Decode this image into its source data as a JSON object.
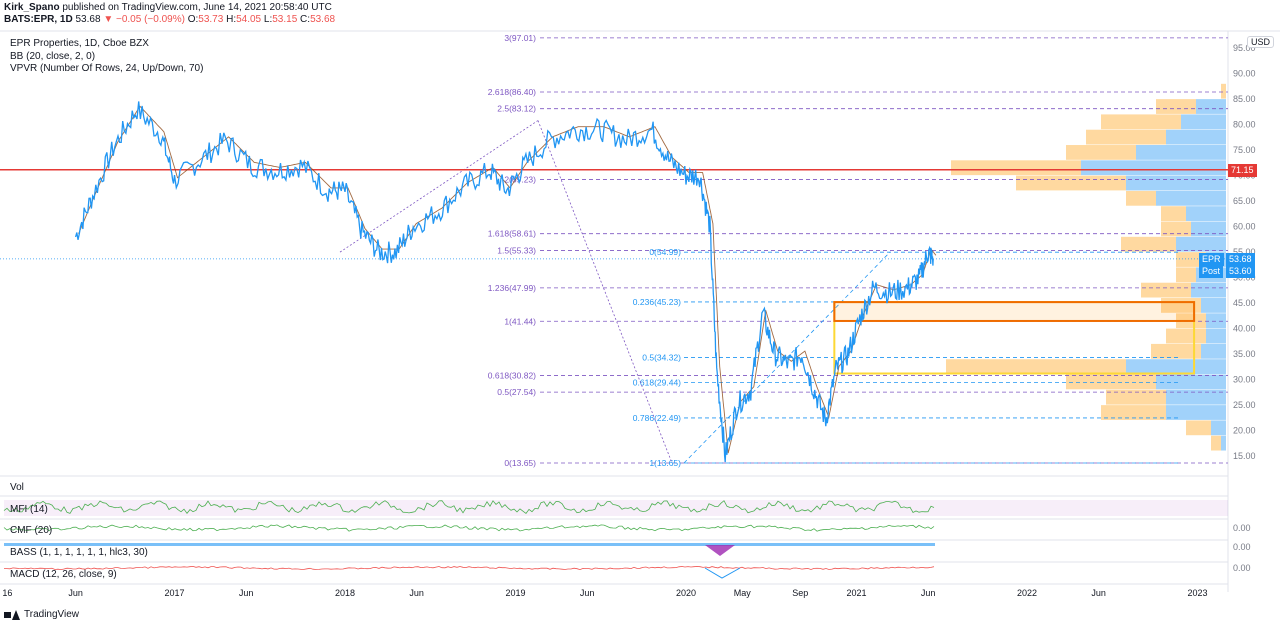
{
  "header": {
    "author": "Kirk_Spano",
    "published": "published on TradingView.com, June 14, 2021 20:58:40 UTC",
    "symbol_line": "BATS:EPR, 1D",
    "last": "53.68",
    "change": "−0.05 (−0.09%)",
    "O": "53.73",
    "H": "54.05",
    "L": "53.15",
    "C": "53.68"
  },
  "legends": {
    "title": "EPR Properties, 1D, Cboe BZX",
    "bb": "BB (20, close, 2, 0)",
    "vpvr": "VPVR (Number Of Rows, 24, Up/Down, 70)",
    "vol": "Vol",
    "mfi": "MFI (14)",
    "cmf": "CMF (20)",
    "bass": "BASS (1, 1, 1, 1, 1, 1, hlc3, 30)",
    "macd": "MACD (12, 26, close, 9)"
  },
  "footer": {
    "brand": "TradingView"
  },
  "price_axis": {
    "unit": "USD",
    "ticks": [
      "95.00",
      "90.00",
      "85.00",
      "80.00",
      "75.00",
      "70.00",
      "65.00",
      "60.00",
      "55.00",
      "50.00",
      "45.00",
      "40.00",
      "35.00",
      "30.00",
      "25.00",
      "20.00",
      "15.00"
    ],
    "pane_ticks": {
      "cmf": "0.00",
      "bass": "0.00",
      "macd": "0.00"
    }
  },
  "time_axis": [
    "16",
    "Jun",
    "2017",
    "Jun",
    "2018",
    "Jun",
    "2019",
    "Jun",
    "2020",
    "May",
    "Sep",
    "2021",
    "Jun",
    "2022",
    "Jun",
    "2023"
  ],
  "tags": {
    "resistance": "71.15",
    "symbol": "EPR",
    "symbol_price": "53.68",
    "post": "Post",
    "post_price": "53.60"
  },
  "colors": {
    "price": "#2196f3",
    "ma": "#8b4513",
    "resistance": "#e53935",
    "fib_ext": "#7e57c2",
    "fib_ret": "#2196f3",
    "box_orange": "#ef6c00",
    "box_yellow": "#fdd835",
    "vp_up": "#90caf9",
    "vp_down": "#ffcc80"
  },
  "chart_data": {
    "type": "line",
    "title": "EPR Properties, 1D, Cboe BZX",
    "ylim": [
      12,
      97
    ],
    "resistance_level": 71.15,
    "fib_extension": [
      {
        "label": "3(97.01)",
        "value": 97.01
      },
      {
        "label": "2.618(86.40)",
        "value": 86.4
      },
      {
        "label": "2.5(83.12)",
        "value": 83.12
      },
      {
        "label": "2(69.23)",
        "value": 69.23
      },
      {
        "label": "1.618(58.61)",
        "value": 58.61
      },
      {
        "label": "1.5(55.33)",
        "value": 55.33
      },
      {
        "label": "1.236(47.99)",
        "value": 47.99
      },
      {
        "label": "1(41.44)",
        "value": 41.44
      },
      {
        "label": "0.618(30.82)",
        "value": 30.82
      },
      {
        "label": "0.5(27.54)",
        "value": 27.54
      },
      {
        "label": "0(13.65)",
        "value": 13.65
      }
    ],
    "fib_retracement": [
      {
        "label": "0(54.99)",
        "value": 54.99
      },
      {
        "label": "0.236(45.23)",
        "value": 45.23
      },
      {
        "label": "0.5(34.32)",
        "value": 34.32
      },
      {
        "label": "0.618(29.44)",
        "value": 29.44
      },
      {
        "label": "0.786(22.49)",
        "value": 22.49
      },
      {
        "label": "1(13.65)",
        "value": 13.65
      }
    ],
    "price_series": [
      {
        "t": 2016.42,
        "v": 58
      },
      {
        "t": 2016.52,
        "v": 66
      },
      {
        "t": 2016.65,
        "v": 76
      },
      {
        "t": 2016.78,
        "v": 83
      },
      {
        "t": 2016.92,
        "v": 78
      },
      {
        "t": 2017.0,
        "v": 69
      },
      {
        "t": 2017.15,
        "v": 73
      },
      {
        "t": 2017.3,
        "v": 77
      },
      {
        "t": 2017.45,
        "v": 72
      },
      {
        "t": 2017.6,
        "v": 71
      },
      {
        "t": 2017.75,
        "v": 72
      },
      {
        "t": 2017.9,
        "v": 67
      },
      {
        "t": 2018.0,
        "v": 67
      },
      {
        "t": 2018.1,
        "v": 59
      },
      {
        "t": 2018.2,
        "v": 55
      },
      {
        "t": 2018.3,
        "v": 55
      },
      {
        "t": 2018.4,
        "v": 60
      },
      {
        "t": 2018.55,
        "v": 63
      },
      {
        "t": 2018.7,
        "v": 68
      },
      {
        "t": 2018.85,
        "v": 71
      },
      {
        "t": 2018.95,
        "v": 67
      },
      {
        "t": 2019.05,
        "v": 72
      },
      {
        "t": 2019.2,
        "v": 77
      },
      {
        "t": 2019.35,
        "v": 79
      },
      {
        "t": 2019.5,
        "v": 79
      },
      {
        "t": 2019.65,
        "v": 77
      },
      {
        "t": 2019.8,
        "v": 79
      },
      {
        "t": 2019.9,
        "v": 73
      },
      {
        "t": 2020.0,
        "v": 70
      },
      {
        "t": 2020.08,
        "v": 70
      },
      {
        "t": 2020.14,
        "v": 60
      },
      {
        "t": 2020.18,
        "v": 32
      },
      {
        "t": 2020.23,
        "v": 15
      },
      {
        "t": 2020.3,
        "v": 25
      },
      {
        "t": 2020.38,
        "v": 28
      },
      {
        "t": 2020.45,
        "v": 43
      },
      {
        "t": 2020.52,
        "v": 35
      },
      {
        "t": 2020.6,
        "v": 33
      },
      {
        "t": 2020.68,
        "v": 35
      },
      {
        "t": 2020.75,
        "v": 28
      },
      {
        "t": 2020.82,
        "v": 22
      },
      {
        "t": 2020.88,
        "v": 32
      },
      {
        "t": 2020.95,
        "v": 35
      },
      {
        "t": 2021.02,
        "v": 42
      },
      {
        "t": 2021.1,
        "v": 48
      },
      {
        "t": 2021.2,
        "v": 47
      },
      {
        "t": 2021.3,
        "v": 48
      },
      {
        "t": 2021.37,
        "v": 50
      },
      {
        "t": 2021.42,
        "v": 55
      },
      {
        "t": 2021.45,
        "v": 53.68
      }
    ],
    "boxes": [
      {
        "name": "orange-zone",
        "t0": 2020.87,
        "t1": 2022.98,
        "y0": 41.5,
        "y1": 45.2
      },
      {
        "name": "yellow-zone",
        "t0": 2020.87,
        "t1": 2022.98,
        "y0": 31.2,
        "y1": 45.2
      }
    ],
    "volume_profile": [
      {
        "price": 86.5,
        "up": 0,
        "down": 5
      },
      {
        "price": 83.5,
        "up": 30,
        "down": 40
      },
      {
        "price": 80.5,
        "up": 45,
        "down": 80
      },
      {
        "price": 77.5,
        "up": 60,
        "down": 80
      },
      {
        "price": 74.5,
        "up": 90,
        "down": 70
      },
      {
        "price": 71.5,
        "up": 145,
        "down": 130
      },
      {
        "price": 68.5,
        "up": 100,
        "down": 110
      },
      {
        "price": 65.5,
        "up": 70,
        "down": 30
      },
      {
        "price": 62.5,
        "up": 40,
        "down": 25
      },
      {
        "price": 59.5,
        "up": 35,
        "down": 30
      },
      {
        "price": 56.5,
        "up": 50,
        "down": 55
      },
      {
        "price": 53.5,
        "up": 20,
        "down": 30
      },
      {
        "price": 50.5,
        "up": 30,
        "down": 20
      },
      {
        "price": 47.5,
        "up": 35,
        "down": 50
      },
      {
        "price": 44.5,
        "up": 25,
        "down": 40
      },
      {
        "price": 41.5,
        "up": 20,
        "down": 30
      },
      {
        "price": 38.5,
        "up": 20,
        "down": 40
      },
      {
        "price": 35.5,
        "up": 25,
        "down": 50
      },
      {
        "price": 32.5,
        "up": 100,
        "down": 180
      },
      {
        "price": 29.5,
        "up": 70,
        "down": 90
      },
      {
        "price": 26.5,
        "up": 60,
        "down": 60
      },
      {
        "price": 23.5,
        "up": 60,
        "down": 65
      },
      {
        "price": 20.5,
        "up": 15,
        "down": 25
      },
      {
        "price": 17.5,
        "up": 5,
        "down": 10
      }
    ]
  }
}
